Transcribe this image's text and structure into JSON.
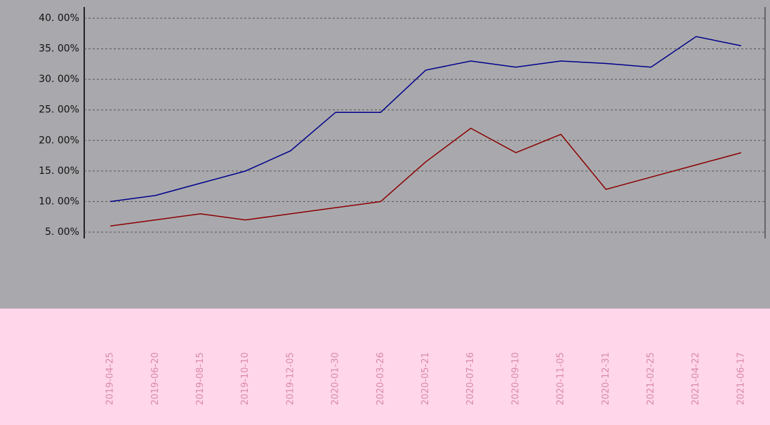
{
  "chart_data": {
    "type": "line",
    "categories": [
      "2019-04-25",
      "2019-06-20",
      "2019-08-15",
      "2019-10-10",
      "2019-12-05",
      "2020-01-30",
      "2020-03-26",
      "2020-05-21",
      "2020-07-16",
      "2020-09-10",
      "2020-11-05",
      "2020-12-31",
      "2021-02-25",
      "2021-04-22",
      "2021-06-17"
    ],
    "series": [
      {
        "color": "#00008b",
        "values": [
          10,
          11,
          13,
          15,
          18.3,
          24.6,
          24.6,
          31.5,
          33,
          32,
          33,
          32.6,
          32,
          37,
          35.5
        ]
      },
      {
        "color": "#8b0000",
        "values": [
          6,
          7,
          8,
          7,
          8,
          9,
          10,
          16.5,
          22,
          18,
          21,
          12,
          14,
          16,
          18
        ]
      }
    ],
    "ylim": [
      5,
      40
    ],
    "yticks": [
      {
        "value": 5,
        "label": "5. 00%"
      },
      {
        "value": 10,
        "label": "10. 00%"
      },
      {
        "value": 15,
        "label": "15. 00%"
      },
      {
        "value": 20,
        "label": "20. 00%"
      },
      {
        "value": 25,
        "label": "25. 00%"
      },
      {
        "value": 30,
        "label": "30. 00%"
      },
      {
        "value": 35,
        "label": "35. 00%"
      },
      {
        "value": 40,
        "label": "40. 00%"
      }
    ],
    "grid": true
  }
}
